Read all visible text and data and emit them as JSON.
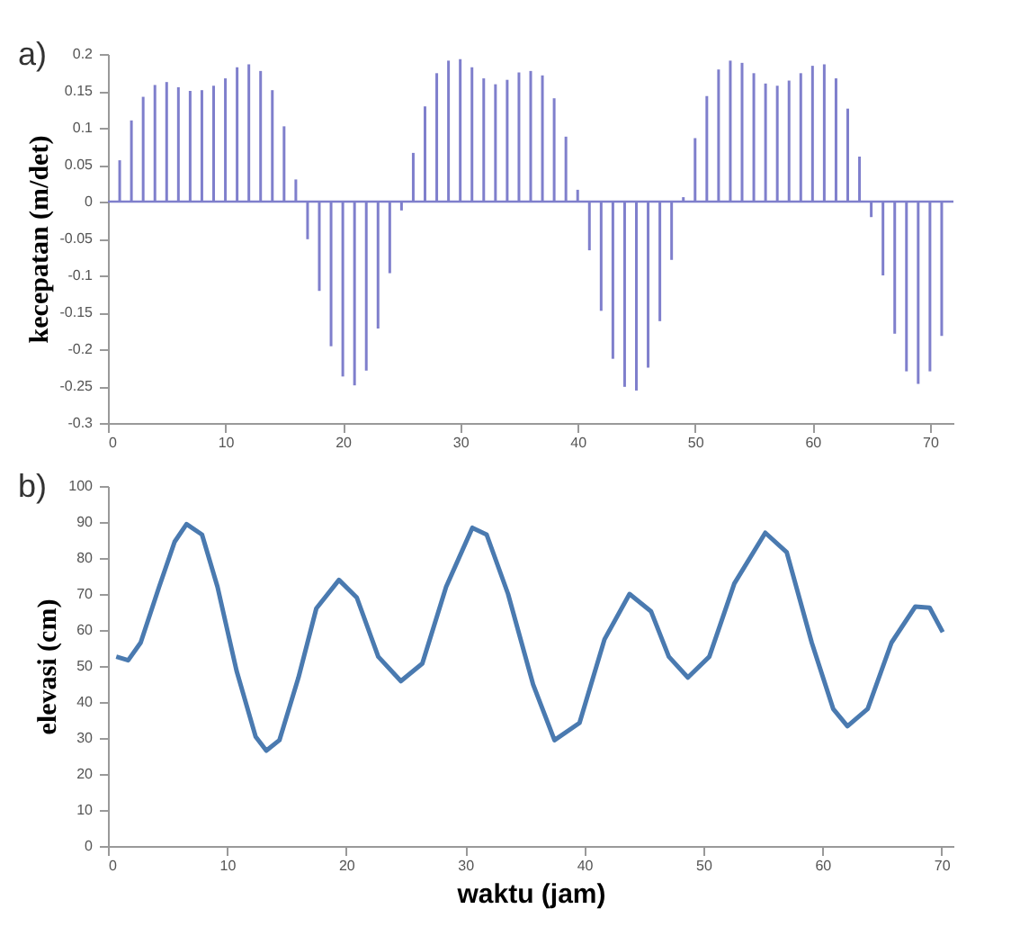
{
  "chart_data": [
    {
      "type": "bar",
      "annotations": [
        "a)"
      ],
      "ylabel": "kecepatan (m/det)",
      "x": [
        1,
        2,
        3,
        4,
        5,
        6,
        7,
        8,
        9,
        10,
        11,
        12,
        13,
        14,
        15,
        16,
        17,
        18,
        19,
        20,
        21,
        22,
        23,
        24,
        25,
        26,
        27,
        28,
        29,
        30,
        31,
        32,
        33,
        34,
        35,
        36,
        37,
        38,
        39,
        40,
        41,
        42,
        43,
        44,
        45,
        46,
        47,
        48,
        49,
        50,
        51,
        52,
        53,
        54,
        55,
        56,
        57,
        58,
        59,
        60,
        61,
        62,
        63,
        64,
        65,
        66,
        67,
        68,
        69,
        70,
        71
      ],
      "values": [
        0.056,
        0.11,
        0.142,
        0.158,
        0.162,
        0.155,
        0.15,
        0.151,
        0.157,
        0.167,
        0.182,
        0.186,
        0.177,
        0.151,
        0.102,
        0.03,
        -0.051,
        -0.121,
        -0.196,
        -0.237,
        -0.249,
        -0.229,
        -0.172,
        -0.097,
        -0.012,
        0.066,
        0.129,
        0.174,
        0.191,
        0.193,
        0.182,
        0.167,
        0.159,
        0.165,
        0.175,
        0.177,
        0.171,
        0.14,
        0.088,
        0.016,
        -0.066,
        -0.148,
        -0.213,
        -0.251,
        -0.256,
        -0.225,
        -0.162,
        -0.079,
        0.006,
        0.086,
        0.143,
        0.179,
        0.191,
        0.188,
        0.174,
        0.16,
        0.157,
        0.164,
        0.174,
        0.184,
        0.186,
        0.167,
        0.126,
        0.061,
        -0.021,
        -0.1,
        -0.179,
        -0.23,
        -0.247,
        -0.23,
        -0.182
      ],
      "color": "#7f7fcc",
      "xlim": [
        0,
        72
      ],
      "xticks": [
        0,
        10,
        20,
        30,
        40,
        50,
        60,
        70
      ],
      "ylim": [
        -0.3,
        0.2
      ],
      "yticks": [
        -0.3,
        -0.25,
        -0.2,
        -0.15,
        -0.1,
        -0.05,
        0,
        0.05,
        0.1,
        0.15,
        0.2
      ],
      "ref_lines": [
        {
          "axis": "y",
          "value": 0,
          "label": null,
          "color": "#7f7fcc"
        }
      ],
      "grid": false
    },
    {
      "type": "line",
      "annotations": [
        "b)"
      ],
      "xlabel": "waktu (jam)",
      "ylabel": "elevasi (cm)",
      "x": [
        0.7,
        1.7,
        2.75,
        4.3,
        5.6,
        6.6,
        7.9,
        9.2,
        10.8,
        12.4,
        13.3,
        14.4,
        16,
        17.5,
        19.4,
        20.9,
        22.7,
        24.6,
        26.4,
        28.4,
        30.6,
        31.8,
        33.6,
        35.7,
        37.5,
        39.6,
        41.7,
        43.8,
        45.6,
        47.1,
        48.7,
        50.5,
        52.6,
        55.2,
        57,
        59.1,
        60.9,
        62.1,
        63.8,
        65.8,
        67.8,
        69,
        70.1
      ],
      "values": [
        52.6,
        51.6,
        56.5,
        72,
        84.5,
        89.4,
        86.5,
        72,
        48.7,
        30.4,
        26.5,
        29.4,
        46.8,
        66,
        73.9,
        69,
        52.6,
        45.8,
        50.7,
        72,
        88.4,
        86.5,
        70,
        44.9,
        29.4,
        34.2,
        57.4,
        70,
        65.2,
        52.6,
        46.8,
        52.6,
        72.9,
        87,
        81.6,
        56.5,
        38.1,
        33.3,
        38.1,
        56.5,
        66.5,
        66.2,
        59.4
      ],
      "color": "#4a7ab0",
      "xlim": [
        0,
        71
      ],
      "xticks": [
        0,
        10,
        20,
        30,
        40,
        50,
        60,
        70
      ],
      "ylim": [
        0,
        100
      ],
      "yticks": [
        0,
        10,
        20,
        30,
        40,
        50,
        60,
        70,
        80,
        90,
        100
      ],
      "grid": false,
      "marker": "none",
      "line_style": "solid"
    }
  ]
}
